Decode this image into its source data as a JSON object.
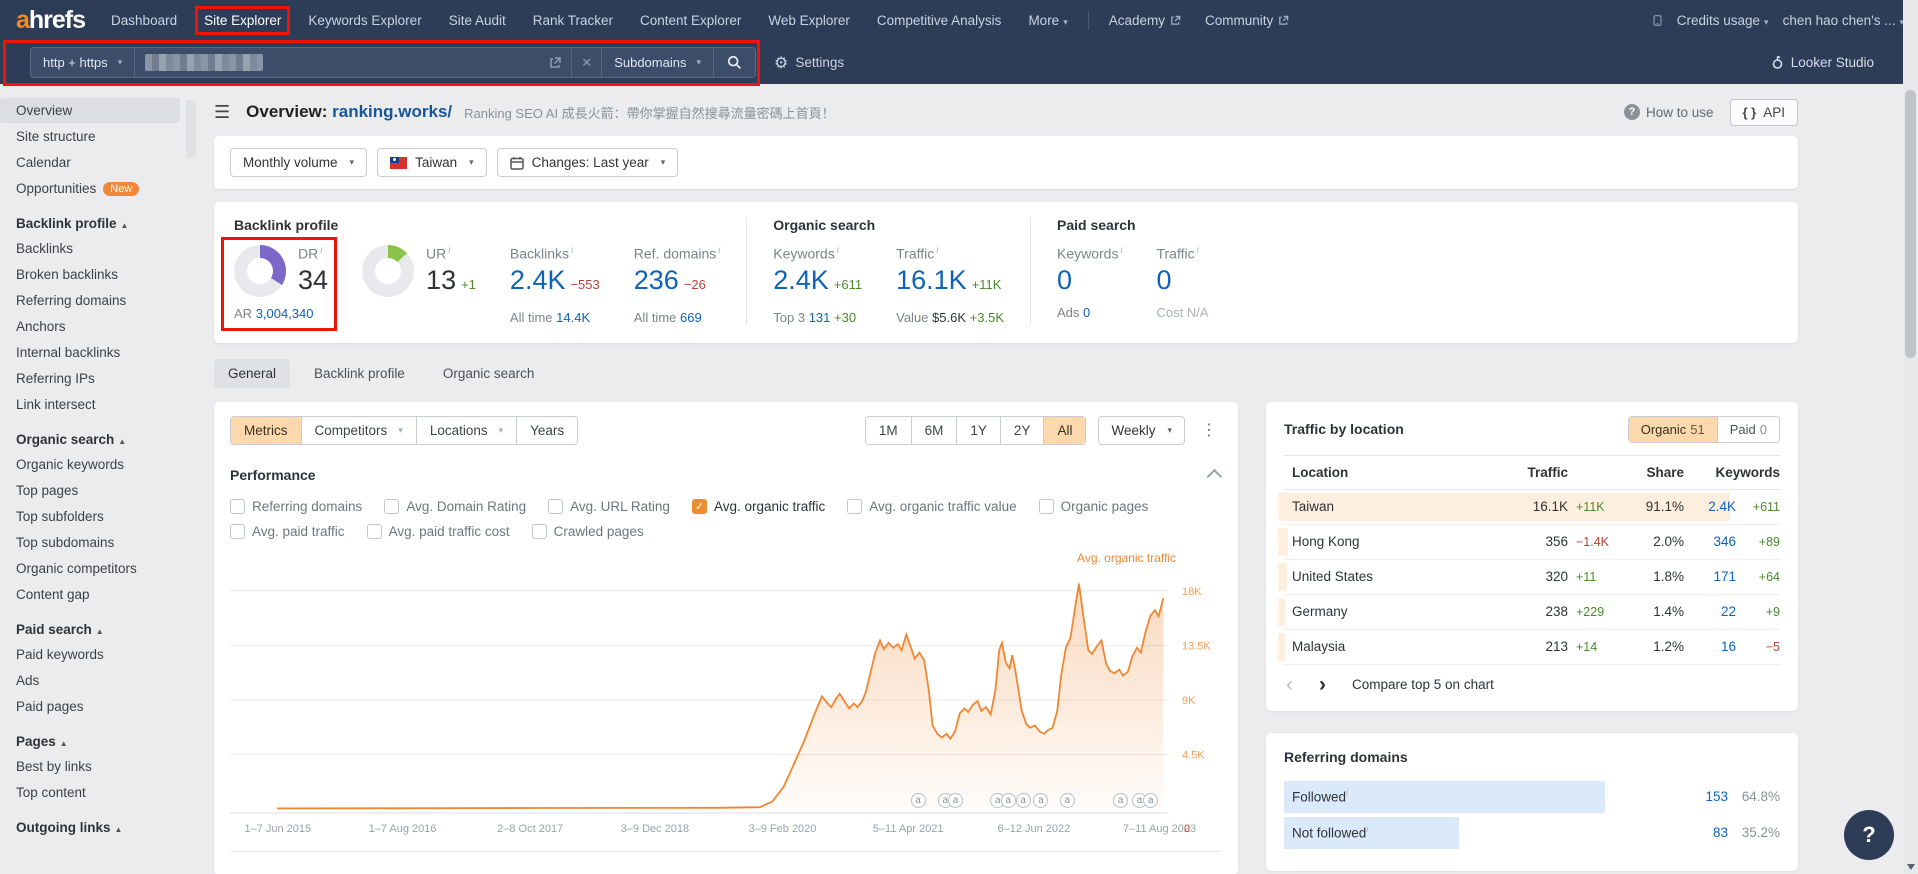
{
  "icons": {
    "caret": "▾",
    "dots": "⋮",
    "close": "✕",
    "gear": "⚙",
    "hamburger": "☰",
    "question": "?",
    "check": "✓",
    "prev": "‹",
    "next": "›",
    "info": "i"
  },
  "topnav": {
    "logo_a": "a",
    "logo_rest": "hrefs",
    "items": [
      "Dashboard",
      "Site Explorer",
      "Keywords Explorer",
      "Site Audit",
      "Rank Tracker",
      "Content Explorer",
      "Web Explorer",
      "Competitive Analysis"
    ],
    "active_item": "Site Explorer",
    "more_label": "More",
    "external_items": [
      "Academy",
      "Community"
    ],
    "credits_label": "Credits usage",
    "account_label": "chen hao chen's ..."
  },
  "searchbar": {
    "protocol": "http + https",
    "mode": "Subdomains",
    "settings_label": "Settings",
    "looker_label": "Looker Studio"
  },
  "sidebar": {
    "items": [
      {
        "label": "Overview",
        "type": "item",
        "active": true
      },
      {
        "label": "Site structure",
        "type": "item"
      },
      {
        "label": "Calendar",
        "type": "item"
      },
      {
        "label": "Opportunities",
        "type": "item",
        "badge": "New"
      },
      {
        "label": "Backlink profile",
        "type": "section"
      },
      {
        "label": "Backlinks",
        "type": "item"
      },
      {
        "label": "Broken backlinks",
        "type": "item"
      },
      {
        "label": "Referring domains",
        "type": "item"
      },
      {
        "label": "Anchors",
        "type": "item"
      },
      {
        "label": "Internal backlinks",
        "type": "item"
      },
      {
        "label": "Referring IPs",
        "type": "item"
      },
      {
        "label": "Link intersect",
        "type": "item"
      },
      {
        "label": "Organic search",
        "type": "section"
      },
      {
        "label": "Organic keywords",
        "type": "item"
      },
      {
        "label": "Top pages",
        "type": "item"
      },
      {
        "label": "Top subfolders",
        "type": "item"
      },
      {
        "label": "Top subdomains",
        "type": "item"
      },
      {
        "label": "Organic competitors",
        "type": "item"
      },
      {
        "label": "Content gap",
        "type": "item"
      },
      {
        "label": "Paid search",
        "type": "section"
      },
      {
        "label": "Paid keywords",
        "type": "item"
      },
      {
        "label": "Ads",
        "type": "item"
      },
      {
        "label": "Paid pages",
        "type": "item"
      },
      {
        "label": "Pages",
        "type": "section"
      },
      {
        "label": "Best by links",
        "type": "item"
      },
      {
        "label": "Top content",
        "type": "item"
      },
      {
        "label": "Outgoing links",
        "type": "section"
      }
    ]
  },
  "header": {
    "title": "Overview:",
    "domain": "ranking.works/",
    "subtitle": "Ranking SEO AI 成長火箭：帶你掌握自然搜尋流量密碼上首頁！",
    "how_to_use": "How to use",
    "api_label": "API",
    "braces": "{ }"
  },
  "filters": {
    "volume": "Monthly volume",
    "country": "Taiwan",
    "changes": "Changes: Last year"
  },
  "stats": {
    "backlink_profile": {
      "heading": "Backlink profile",
      "dr": {
        "label": "DR",
        "value": "34",
        "percent": 34,
        "ar_label": "AR",
        "ar_value": "3,004,340",
        "color": "#7b68c8"
      },
      "ur": {
        "label": "UR",
        "value": "13",
        "delta": "+1",
        "percent": 13,
        "color": "#8bc34a"
      },
      "backlinks": {
        "label": "Backlinks",
        "value": "2.4K",
        "delta": "−553",
        "alltime_label": "All time",
        "alltime": "14.4K"
      },
      "ref_domains": {
        "label": "Ref. domains",
        "value": "236",
        "delta": "−26",
        "alltime_label": "All time",
        "alltime": "669"
      }
    },
    "organic": {
      "heading": "Organic search",
      "keywords": {
        "label": "Keywords",
        "value": "2.4K",
        "delta": "+611",
        "sub_label": "Top 3",
        "sub_value": "131",
        "sub_delta": "+30"
      },
      "traffic": {
        "label": "Traffic",
        "value": "16.1K",
        "delta": "+11K",
        "sub_label": "Value",
        "sub_value": "$5.6K",
        "sub_delta": "+3.5K"
      }
    },
    "paid": {
      "heading": "Paid search",
      "keywords": {
        "label": "Keywords",
        "value": "0",
        "sub_label": "Ads",
        "sub_value": "0"
      },
      "traffic": {
        "label": "Traffic",
        "value": "0",
        "sub_label": "Cost",
        "sub_value": "N/A"
      }
    }
  },
  "tabs": {
    "labels": [
      "General",
      "Backlink profile",
      "Organic search"
    ],
    "active": "General"
  },
  "toolbar": {
    "left_buttons": [
      {
        "label": "Metrics",
        "active": true,
        "caret": false
      },
      {
        "label": "Competitors",
        "caret": true
      },
      {
        "label": "Locations",
        "caret": true
      },
      {
        "label": "Years",
        "caret": false
      }
    ],
    "ranges": [
      "1M",
      "6M",
      "1Y",
      "2Y",
      "All"
    ],
    "active_range": "All",
    "granularity": "Weekly"
  },
  "performance": {
    "title": "Performance",
    "metrics": [
      {
        "label": "Referring domains",
        "checked": false
      },
      {
        "label": "Avg. Domain Rating",
        "checked": false
      },
      {
        "label": "Avg. URL Rating",
        "checked": false
      },
      {
        "label": "Avg. organic traffic",
        "checked": true
      },
      {
        "label": "Avg. organic traffic value",
        "checked": false
      },
      {
        "label": "Organic pages",
        "checked": false
      },
      {
        "label": "Avg. paid traffic",
        "checked": false
      },
      {
        "label": "Avg. paid traffic cost",
        "checked": false
      },
      {
        "label": "Crawled pages",
        "checked": false
      }
    ]
  },
  "chart_data": {
    "type": "area",
    "title": "Avg. organic traffic",
    "line_color": "#ef8732",
    "axis_label_color": "#f59d53",
    "ylim": [
      0,
      19800
    ],
    "y_ticks": [
      {
        "value": 4500,
        "label": "4.5K"
      },
      {
        "value": 9000,
        "label": "9K"
      },
      {
        "value": 13500,
        "label": "13.5K"
      },
      {
        "value": 18000,
        "label": "18K"
      }
    ],
    "x_labels": [
      {
        "pos": 0.051,
        "label": "1–7 Jun 2015"
      },
      {
        "pos": 0.184,
        "label": "1–7 Aug 2016"
      },
      {
        "pos": 0.32,
        "label": "2–8 Oct 2017"
      },
      {
        "pos": 0.453,
        "label": "3–9 Dec 2018"
      },
      {
        "pos": 0.589,
        "label": "3–9 Feb 2020"
      },
      {
        "pos": 0.723,
        "label": "5–11 Apr 2021"
      },
      {
        "pos": 0.857,
        "label": "6–12 Jun 2022"
      },
      {
        "pos": 0.991,
        "label": "7–11 Aug 2023"
      }
    ],
    "axis_end_value": "0",
    "marker_label": "a",
    "markers": [
      0.733,
      0.762,
      0.773,
      0.818,
      0.829,
      0.845,
      0.864,
      0.892,
      0.949,
      0.969,
      0.981
    ],
    "points": [
      [
        0.05,
        50
      ],
      [
        0.15,
        60
      ],
      [
        0.24,
        70
      ],
      [
        0.33,
        80
      ],
      [
        0.43,
        90
      ],
      [
        0.52,
        100
      ],
      [
        0.565,
        150
      ],
      [
        0.578,
        600
      ],
      [
        0.59,
        1800
      ],
      [
        0.6,
        3500
      ],
      [
        0.612,
        5600
      ],
      [
        0.622,
        7600
      ],
      [
        0.631,
        9300
      ],
      [
        0.636,
        8800
      ],
      [
        0.641,
        8400
      ],
      [
        0.646,
        9100
      ],
      [
        0.65,
        9500
      ],
      [
        0.655,
        8900
      ],
      [
        0.66,
        8300
      ],
      [
        0.665,
        8700
      ],
      [
        0.669,
        8400
      ],
      [
        0.674,
        8900
      ],
      [
        0.678,
        9700
      ],
      [
        0.683,
        11300
      ],
      [
        0.688,
        12900
      ],
      [
        0.693,
        13900
      ],
      [
        0.697,
        13200
      ],
      [
        0.702,
        13700
      ],
      [
        0.707,
        13300
      ],
      [
        0.712,
        13600
      ],
      [
        0.716,
        13100
      ],
      [
        0.721,
        14400
      ],
      [
        0.726,
        13300
      ],
      [
        0.73,
        12400
      ],
      [
        0.735,
        12900
      ],
      [
        0.74,
        12300
      ],
      [
        0.745,
        9800
      ],
      [
        0.749,
        6900
      ],
      [
        0.754,
        6200
      ],
      [
        0.759,
        5900
      ],
      [
        0.764,
        6200
      ],
      [
        0.768,
        5800
      ],
      [
        0.773,
        6400
      ],
      [
        0.778,
        7900
      ],
      [
        0.783,
        8300
      ],
      [
        0.787,
        8000
      ],
      [
        0.792,
        8600
      ],
      [
        0.797,
        8900
      ],
      [
        0.801,
        8100
      ],
      [
        0.806,
        8400
      ],
      [
        0.811,
        7800
      ],
      [
        0.816,
        9800
      ],
      [
        0.82,
        13100
      ],
      [
        0.823,
        13700
      ],
      [
        0.827,
        12100
      ],
      [
        0.831,
        11600
      ],
      [
        0.834,
        12700
      ],
      [
        0.838,
        11100
      ],
      [
        0.844,
        8100
      ],
      [
        0.849,
        7000
      ],
      [
        0.853,
        6700
      ],
      [
        0.858,
        6900
      ],
      [
        0.863,
        6400
      ],
      [
        0.868,
        6200
      ],
      [
        0.872,
        6500
      ],
      [
        0.877,
        6700
      ],
      [
        0.882,
        8100
      ],
      [
        0.886,
        11000
      ],
      [
        0.891,
        13300
      ],
      [
        0.896,
        14100
      ],
      [
        0.901,
        16600
      ],
      [
        0.905,
        18600
      ],
      [
        0.91,
        15800
      ],
      [
        0.915,
        13100
      ],
      [
        0.919,
        12800
      ],
      [
        0.924,
        13400
      ],
      [
        0.929,
        13900
      ],
      [
        0.934,
        12000
      ],
      [
        0.938,
        11400
      ],
      [
        0.943,
        11200
      ],
      [
        0.948,
        11500
      ],
      [
        0.952,
        11000
      ],
      [
        0.957,
        11300
      ],
      [
        0.962,
        12600
      ],
      [
        0.967,
        13300
      ],
      [
        0.971,
        12900
      ],
      [
        0.976,
        14600
      ],
      [
        0.981,
        15900
      ],
      [
        0.986,
        16400
      ],
      [
        0.99,
        15900
      ],
      [
        0.995,
        17400
      ]
    ]
  },
  "traffic_by_location": {
    "title": "Traffic by location",
    "organic_label": "Organic",
    "organic_count": "51",
    "paid_label": "Paid",
    "paid_count": "0",
    "columns": [
      "Location",
      "Traffic",
      "Share",
      "Keywords"
    ],
    "rows": [
      {
        "location": "Taiwan",
        "traffic": "16.1K",
        "traffic_delta": "+11K",
        "traffic_dir": "up",
        "share": "91.1%",
        "share_pct": 91.1,
        "keywords": "2.4K",
        "kw_delta": "+611",
        "kw_dir": "up"
      },
      {
        "location": "Hong Kong",
        "traffic": "356",
        "traffic_delta": "−1.4K",
        "traffic_dir": "down",
        "share": "2.0%",
        "share_pct": 2.0,
        "keywords": "346",
        "kw_delta": "+89",
        "kw_dir": "up"
      },
      {
        "location": "United States",
        "traffic": "320",
        "traffic_delta": "+11",
        "traffic_dir": "up",
        "share": "1.8%",
        "share_pct": 1.8,
        "keywords": "171",
        "kw_delta": "+64",
        "kw_dir": "up"
      },
      {
        "location": "Germany",
        "traffic": "238",
        "traffic_delta": "+229",
        "traffic_dir": "up",
        "share": "1.4%",
        "share_pct": 1.4,
        "keywords": "22",
        "kw_delta": "+9",
        "kw_dir": "up"
      },
      {
        "location": "Malaysia",
        "traffic": "213",
        "traffic_delta": "+14",
        "traffic_dir": "up",
        "share": "1.2%",
        "share_pct": 1.2,
        "keywords": "16",
        "kw_delta": "−5",
        "kw_dir": "down"
      }
    ],
    "compare_label": "Compare top 5 on chart"
  },
  "referring_domains": {
    "title": "Referring domains",
    "rows": [
      {
        "label": "Followed",
        "value": "153",
        "pct": "64.8%",
        "bar": 64.8
      },
      {
        "label": "Not followed",
        "value": "83",
        "pct": "35.2%",
        "bar": 35.2
      }
    ]
  }
}
